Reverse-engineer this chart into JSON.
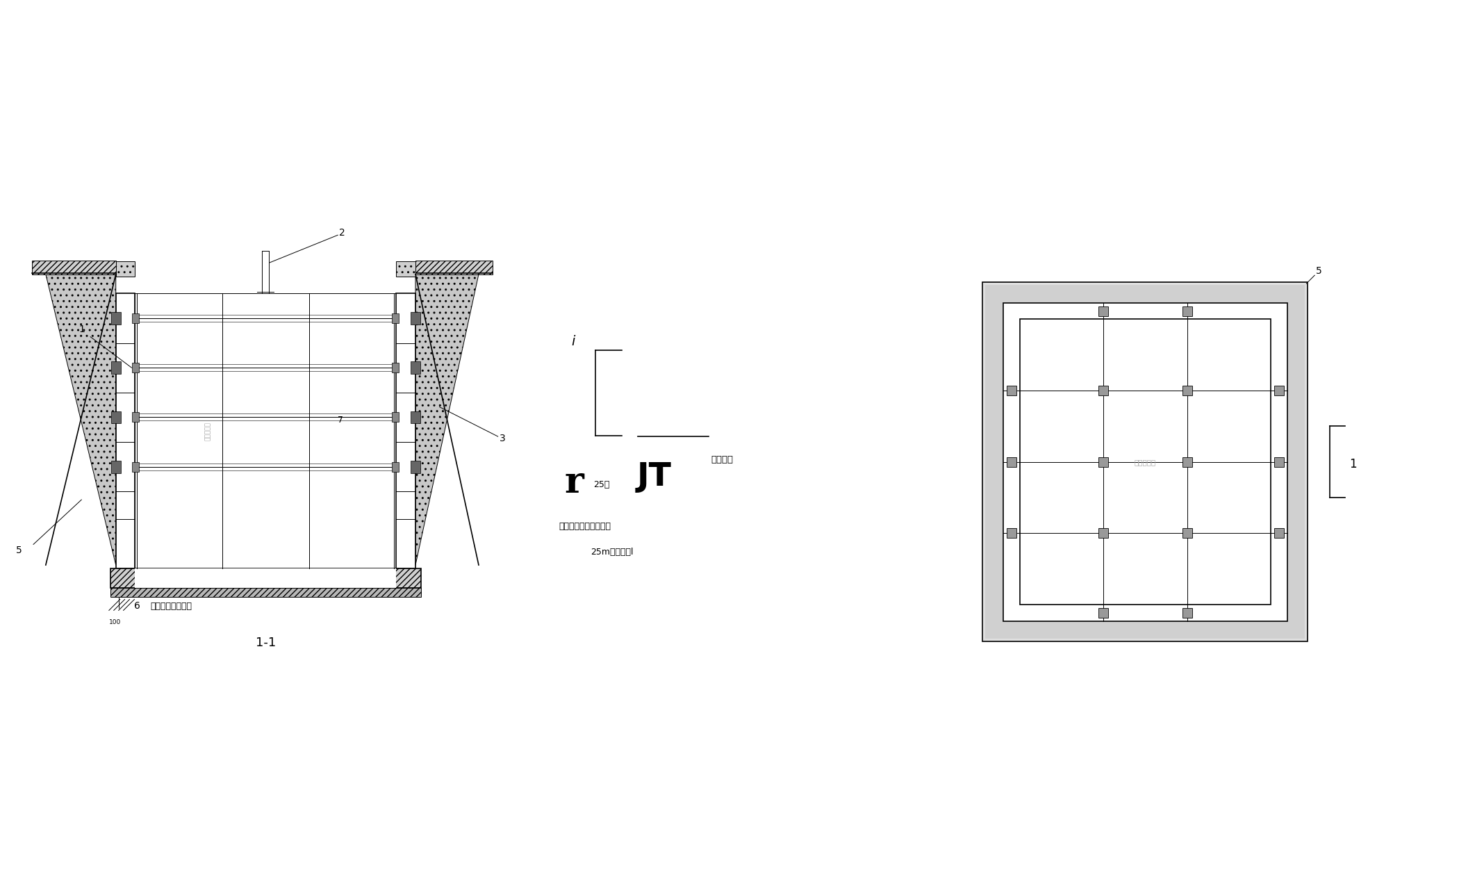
{
  "bg_color": "#ffffff",
  "lc": "#000000",
  "title_11": "1-1",
  "label_1": "1",
  "label_2": "2",
  "label_3": "3",
  "label_5a": "5",
  "label_5b": "5",
  "label_6": "6",
  "label_7": "7",
  "label_1b": "1",
  "annotation1": "发水井及电梯井宽",
  "annotation2": "依计算确定",
  "annotation2b": "依计算确定",
  "note_line1": "底板钢筋进行可奇焊接",
  "note_line2": "25m刷筛方把l",
  "legend_text": "钉筋支架",
  "section_marker_i": "i",
  "section_marker_1": "1"
}
